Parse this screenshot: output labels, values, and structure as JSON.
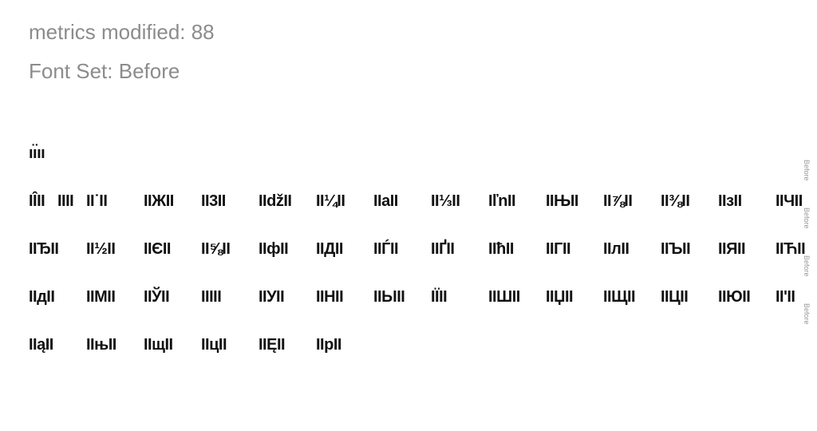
{
  "header": {
    "metrics_modified": "metrics modified: 88",
    "font_set": "Font Set: Before"
  },
  "rows": [
    [
      "ıı̈ıı"
    ],
    [
      "IÎII",
      "IIII",
      "II˙II",
      "IIЖII",
      "II3II",
      "IIdžII",
      "II¼II",
      "IIaII",
      "II⅓II",
      "IľnII",
      "IIЊII",
      "II⅞II",
      "II⅜II",
      "IIзII",
      "IIЧII"
    ],
    [
      "IIЂII",
      "II½II",
      "IIЄII",
      "II⅝II",
      "IIфII",
      "IIДII",
      "IIЃII",
      "IIҐII",
      "IIħII",
      "IIГII",
      "IIлII",
      "IIЪII",
      "IIЯII",
      "IIЋII"
    ],
    [
      "IIдII",
      "IIMII",
      "IIЎII",
      "IIIII",
      "IIУII",
      "IIHII",
      "IIЫII",
      "IЇII",
      "IIШII",
      "IIЏII",
      "IIЩII",
      "IIЦII",
      "IIЮII",
      "II'II"
    ],
    [
      "IIąII",
      "IIњII",
      "IIщII",
      "IIцII",
      "IIĘII",
      "IIpII"
    ]
  ],
  "side_labels": [
    "Before",
    "Before",
    "Before",
    "Before"
  ]
}
